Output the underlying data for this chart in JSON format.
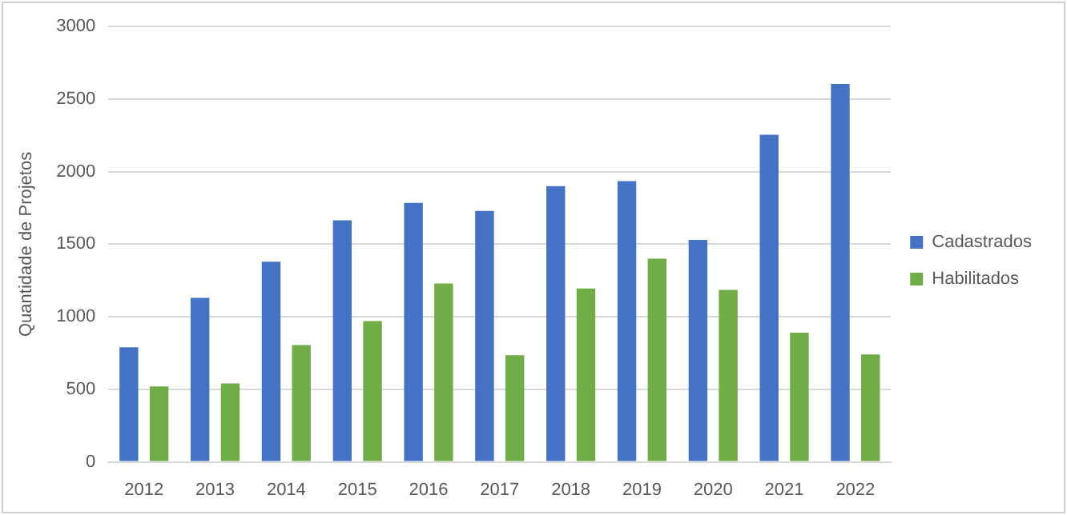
{
  "chart_data": {
    "type": "bar",
    "ylabel": "Quantidade de Projetos",
    "categories": [
      "2012",
      "2013",
      "2014",
      "2015",
      "2016",
      "2017",
      "2018",
      "2019",
      "2020",
      "2021",
      "2022"
    ],
    "series": [
      {
        "name": "Cadastrados",
        "color": "#4472c4",
        "values": [
          790,
          1130,
          1380,
          1665,
          1785,
          1730,
          1900,
          1935,
          1530,
          2255,
          2605
        ]
      },
      {
        "name": "Habilitados",
        "color": "#70ad47",
        "values": [
          520,
          540,
          805,
          970,
          1230,
          735,
          1195,
          1400,
          1185,
          890,
          740
        ]
      }
    ],
    "ylim": [
      0,
      3000
    ],
    "yticks": [
      0,
      500,
      1000,
      1500,
      2000,
      2500,
      3000
    ],
    "grid": "y",
    "legend": "right"
  }
}
